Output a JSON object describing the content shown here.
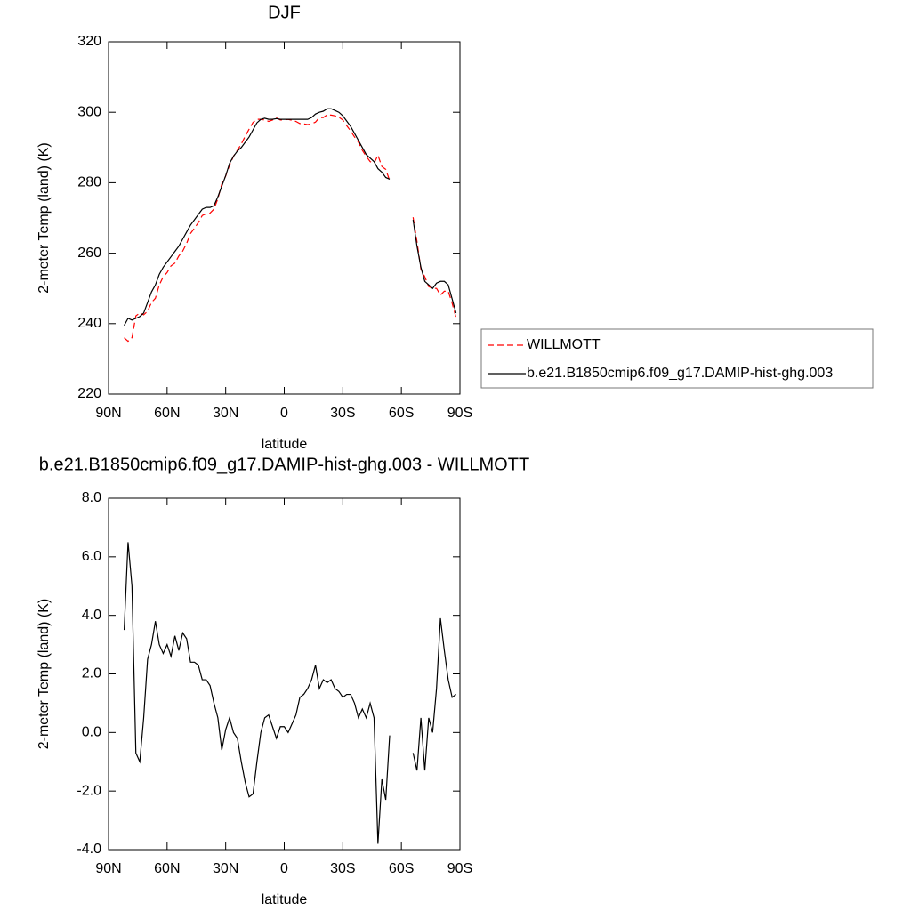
{
  "chart_data": [
    {
      "type": "line",
      "title": "DJF",
      "xlabel": "latitude",
      "ylabel": "2-meter Temp (land) (K)",
      "x": [
        82,
        80,
        78,
        76,
        74,
        72,
        70,
        68,
        66,
        64,
        62,
        60,
        58,
        56,
        54,
        52,
        50,
        48,
        46,
        44,
        42,
        40,
        38,
        36,
        34,
        32,
        30,
        28,
        26,
        24,
        22,
        20,
        18,
        16,
        14,
        12,
        10,
        8,
        6,
        4,
        2,
        0,
        -2,
        -4,
        -6,
        -8,
        -10,
        -12,
        -14,
        -16,
        -18,
        -20,
        -22,
        -24,
        -26,
        -28,
        -30,
        -32,
        -34,
        -36,
        -38,
        -40,
        -42,
        -44,
        -46,
        -48,
        -50,
        -52,
        -54,
        -60,
        -66,
        -68,
        -70,
        -72,
        -74,
        -76,
        -78,
        -80,
        -82,
        -84,
        -86,
        -88
      ],
      "xlim": [
        90,
        -90
      ],
      "xticks": [
        {
          "value": 90,
          "label": "90N"
        },
        {
          "value": 60,
          "label": "60N"
        },
        {
          "value": 30,
          "label": "30N"
        },
        0,
        {
          "value": -30,
          "label": "30S"
        },
        {
          "value": -60,
          "label": "60S"
        },
        {
          "value": -90,
          "label": "90S"
        }
      ],
      "ylim": [
        220,
        320
      ],
      "yticks": [
        220,
        240,
        260,
        280,
        300,
        320
      ],
      "legend": "right",
      "series": [
        {
          "name": "WILLMOTT",
          "color": "#ff0000",
          "line_style": "dashed",
          "values": [
            236.0,
            235.0,
            236.0,
            242.2,
            243.0,
            242.5,
            243.5,
            246.0,
            247.2,
            251.0,
            253.3,
            254.5,
            256.4,
            257.2,
            259.2,
            260.6,
            262.8,
            265.6,
            267.1,
            268.7,
            270.7,
            271.2,
            271.4,
            272.5,
            275.5,
            279.6,
            281.9,
            285.0,
            287.5,
            289.2,
            291.0,
            293.2,
            295.2,
            297.1,
            298.0,
            298.0,
            297.8,
            297.4,
            297.8,
            298.4,
            297.8,
            297.8,
            298.0,
            297.7,
            297.4,
            296.8,
            296.7,
            296.5,
            296.7,
            297.2,
            298.5,
            298.5,
            299.3,
            299.2,
            299.0,
            298.6,
            297.8,
            296.2,
            294.7,
            293.0,
            291.5,
            289.2,
            287.5,
            286.0,
            285.5,
            287.8,
            284.6,
            283.8,
            280.6,
            null,
            270.2,
            263.3,
            255.5,
            253.3,
            250.5,
            250.0,
            250.0,
            248.1,
            249.2,
            249.2,
            245.8,
            241.7
          ]
        },
        {
          "name": "b.e21.B1850cmip6.f09_g17.DAMIP-hist-ghg.003",
          "color": "#000000",
          "line_style": "solid",
          "values": [
            239.5,
            241.5,
            241,
            241.5,
            242,
            243,
            246,
            249,
            251,
            254,
            256,
            257.5,
            259,
            260.5,
            262,
            264,
            266,
            268,
            269.5,
            271,
            272.5,
            273,
            273,
            273.5,
            276,
            279,
            282,
            285.5,
            287.5,
            289,
            290,
            291.5,
            293,
            295,
            297,
            298,
            298.3,
            298,
            298,
            298.2,
            298,
            298,
            298,
            298,
            298,
            298,
            298,
            298,
            298.5,
            299.5,
            300,
            300.3,
            301,
            301,
            300.5,
            300,
            299,
            297.5,
            296,
            294,
            292,
            290,
            288,
            287,
            286,
            284,
            283,
            281.5,
            281,
            null,
            269.5,
            262,
            256,
            252,
            251,
            250,
            251.5,
            252,
            252,
            251,
            247,
            243
          ]
        }
      ]
    },
    {
      "type": "line",
      "title": "b.e21.B1850cmip6.f09_g17.DAMIP-hist-ghg.003 - WILLMOTT",
      "xlabel": "latitude",
      "ylabel": "2-meter Temp (land) (K)",
      "x": [
        82,
        80,
        78,
        76,
        74,
        72,
        70,
        68,
        66,
        64,
        62,
        60,
        58,
        56,
        54,
        52,
        50,
        48,
        46,
        44,
        42,
        40,
        38,
        36,
        34,
        32,
        30,
        28,
        26,
        24,
        22,
        20,
        18,
        16,
        14,
        12,
        10,
        8,
        6,
        4,
        2,
        0,
        -2,
        -4,
        -6,
        -8,
        -10,
        -12,
        -14,
        -16,
        -18,
        -20,
        -22,
        -24,
        -26,
        -28,
        -30,
        -32,
        -34,
        -36,
        -38,
        -40,
        -42,
        -44,
        -46,
        -48,
        -50,
        -52,
        -54,
        -60,
        -66,
        -68,
        -70,
        -72,
        -74,
        -76,
        -78,
        -80,
        -82,
        -84,
        -86,
        -88
      ],
      "xlim": [
        90,
        -90
      ],
      "xticks": [
        {
          "value": 90,
          "label": "90N"
        },
        {
          "value": 60,
          "label": "60N"
        },
        {
          "value": 30,
          "label": "30N"
        },
        0,
        {
          "value": -30,
          "label": "30S"
        },
        {
          "value": -60,
          "label": "60S"
        },
        {
          "value": -90,
          "label": "90S"
        }
      ],
      "ylim": [
        -4,
        8
      ],
      "yticks": [
        {
          "value": -4,
          "label": "-4.0"
        },
        {
          "value": -2,
          "label": "-2.0"
        },
        {
          "value": 0,
          "label": "0.0"
        },
        {
          "value": 2,
          "label": "2.0"
        },
        {
          "value": 4,
          "label": "4.0"
        },
        {
          "value": 6,
          "label": "6.0"
        },
        {
          "value": 8,
          "label": "8.0"
        }
      ],
      "series": [
        {
          "color": "#000000",
          "line_style": "solid",
          "values": [
            3.5,
            6.5,
            5,
            -0.7,
            -1,
            0.5,
            2.5,
            3.0,
            3.8,
            3.0,
            2.7,
            3.0,
            2.6,
            3.3,
            2.8,
            3.4,
            3.2,
            2.4,
            2.4,
            2.3,
            1.8,
            1.8,
            1.6,
            1.0,
            0.5,
            -0.6,
            0.1,
            0.5,
            0.0,
            -0.2,
            -1.0,
            -1.7,
            -2.2,
            -2.1,
            -1.0,
            0.0,
            0.5,
            0.6,
            0.2,
            -0.2,
            0.2,
            0.2,
            0.0,
            0.3,
            0.6,
            1.2,
            1.3,
            1.5,
            1.8,
            2.3,
            1.5,
            1.8,
            1.7,
            1.8,
            1.5,
            1.4,
            1.2,
            1.3,
            1.3,
            1.0,
            0.5,
            0.8,
            0.5,
            1.0,
            0.5,
            -3.8,
            -1.6,
            -2.3,
            -0.1,
            null,
            -0.7,
            -1.3,
            0.5,
            -1.3,
            0.5,
            0.0,
            1.5,
            3.9,
            2.8,
            1.8,
            1.2,
            1.3
          ]
        }
      ]
    }
  ]
}
